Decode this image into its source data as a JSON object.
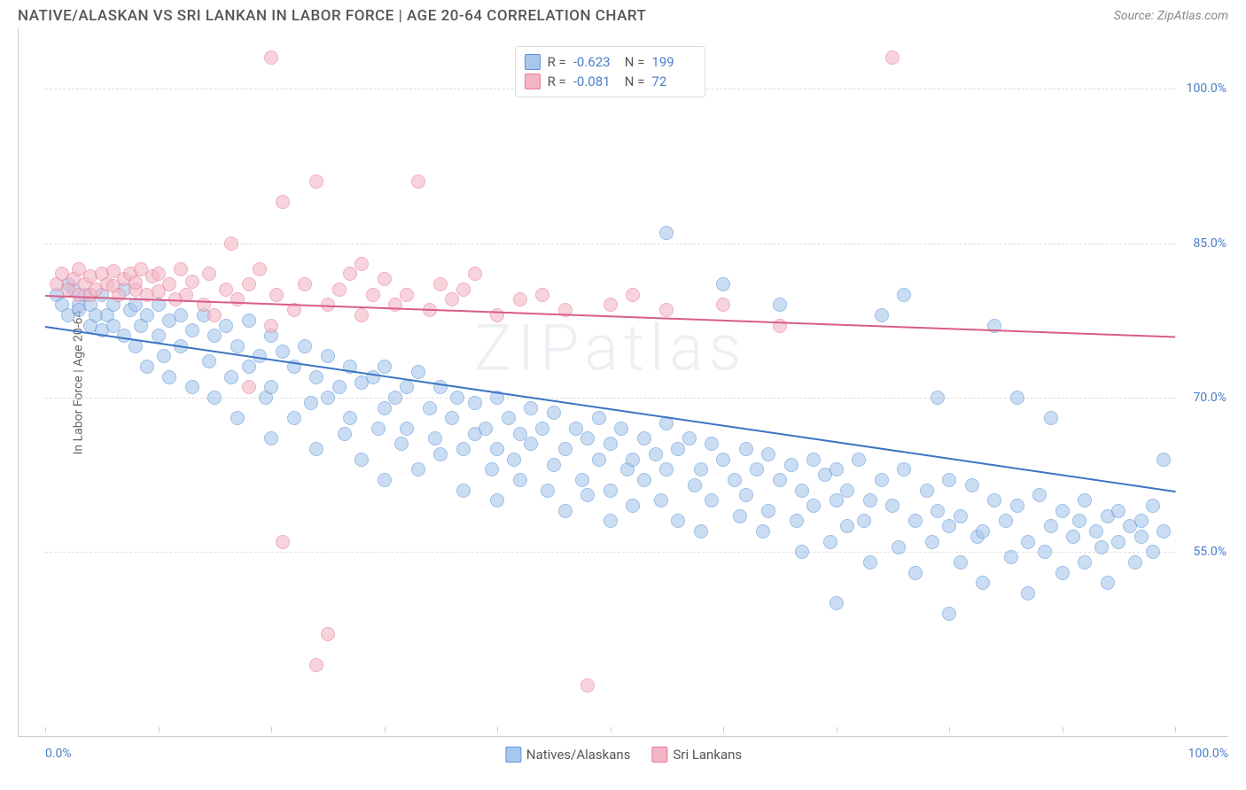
{
  "title": "NATIVE/ALASKAN VS SRI LANKAN IN LABOR FORCE | AGE 20-64 CORRELATION CHART",
  "source": "Source: ZipAtlas.com",
  "watermark": "ZIPatlas",
  "chart": {
    "type": "scatter",
    "ylabel": "In Labor Force | Age 20-64",
    "xlim": [
      0,
      100
    ],
    "ylim": [
      38,
      105
    ],
    "xtick_positions": [
      0,
      10,
      20,
      30,
      40,
      50,
      60,
      70,
      80,
      90,
      100
    ],
    "xtick_labels": {
      "left": "0.0%",
      "right": "100.0%"
    },
    "yticks": [
      {
        "v": 55,
        "label": "55.0%"
      },
      {
        "v": 70,
        "label": "70.0%"
      },
      {
        "v": 85,
        "label": "85.0%"
      },
      {
        "v": 100,
        "label": "100.0%"
      }
    ],
    "grid_color": "#dddddd",
    "background_color": "#ffffff",
    "tick_color": "#cccccc",
    "marker_radius": 8,
    "series": [
      {
        "name": "Natives/Alaskans",
        "fill": "#a9c7ec",
        "stroke": "#5c95d6",
        "line_color": "#3b74c4",
        "R": "-0.623",
        "N": "199",
        "trend": {
          "x1": 0,
          "y1": 77,
          "x2": 100,
          "y2": 61
        },
        "points": [
          [
            1,
            80
          ],
          [
            1.5,
            79
          ],
          [
            2,
            81
          ],
          [
            2,
            78
          ],
          [
            2.5,
            80.5
          ],
          [
            3,
            79
          ],
          [
            3,
            78.5
          ],
          [
            3.5,
            80
          ],
          [
            4,
            79
          ],
          [
            4,
            77
          ],
          [
            4.5,
            78
          ],
          [
            5,
            80
          ],
          [
            5,
            76.5
          ],
          [
            5.5,
            78
          ],
          [
            6,
            79
          ],
          [
            6,
            77
          ],
          [
            7,
            80.5
          ],
          [
            7,
            76
          ],
          [
            7.5,
            78.5
          ],
          [
            8,
            79
          ],
          [
            8,
            75
          ],
          [
            8.5,
            77
          ],
          [
            9,
            78
          ],
          [
            9,
            73
          ],
          [
            10,
            79
          ],
          [
            10,
            76
          ],
          [
            10.5,
            74
          ],
          [
            11,
            77.5
          ],
          [
            11,
            72
          ],
          [
            12,
            78
          ],
          [
            12,
            75
          ],
          [
            13,
            76.5
          ],
          [
            13,
            71
          ],
          [
            14,
            78
          ],
          [
            14.5,
            73.5
          ],
          [
            15,
            76
          ],
          [
            15,
            70
          ],
          [
            16,
            77
          ],
          [
            16.5,
            72
          ],
          [
            17,
            75
          ],
          [
            17,
            68
          ],
          [
            18,
            77.5
          ],
          [
            18,
            73
          ],
          [
            19,
            74
          ],
          [
            19.5,
            70
          ],
          [
            20,
            76
          ],
          [
            20,
            71
          ],
          [
            20,
            66
          ],
          [
            21,
            74.5
          ],
          [
            22,
            73
          ],
          [
            22,
            68
          ],
          [
            23,
            75
          ],
          [
            23.5,
            69.5
          ],
          [
            24,
            72
          ],
          [
            24,
            65
          ],
          [
            25,
            74
          ],
          [
            25,
            70
          ],
          [
            26,
            71
          ],
          [
            26.5,
            66.5
          ],
          [
            27,
            73
          ],
          [
            27,
            68
          ],
          [
            28,
            71.5
          ],
          [
            28,
            64
          ],
          [
            29,
            72
          ],
          [
            29.5,
            67
          ],
          [
            30,
            73
          ],
          [
            30,
            69
          ],
          [
            30,
            62
          ],
          [
            31,
            70
          ],
          [
            31.5,
            65.5
          ],
          [
            32,
            71
          ],
          [
            32,
            67
          ],
          [
            33,
            72.5
          ],
          [
            33,
            63
          ],
          [
            34,
            69
          ],
          [
            34.5,
            66
          ],
          [
            35,
            71
          ],
          [
            35,
            64.5
          ],
          [
            36,
            68
          ],
          [
            36.5,
            70
          ],
          [
            37,
            65
          ],
          [
            37,
            61
          ],
          [
            38,
            69.5
          ],
          [
            38,
            66.5
          ],
          [
            39,
            67
          ],
          [
            39.5,
            63
          ],
          [
            40,
            70
          ],
          [
            40,
            65
          ],
          [
            40,
            60
          ],
          [
            41,
            68
          ],
          [
            41.5,
            64
          ],
          [
            42,
            66.5
          ],
          [
            42,
            62
          ],
          [
            43,
            69
          ],
          [
            43,
            65.5
          ],
          [
            44,
            67
          ],
          [
            44.5,
            61
          ],
          [
            45,
            68.5
          ],
          [
            45,
            63.5
          ],
          [
            46,
            65
          ],
          [
            46,
            59
          ],
          [
            47,
            67
          ],
          [
            47.5,
            62
          ],
          [
            48,
            66
          ],
          [
            48,
            60.5
          ],
          [
            49,
            68
          ],
          [
            49,
            64
          ],
          [
            50,
            65.5
          ],
          [
            50,
            61
          ],
          [
            50,
            58
          ],
          [
            51,
            67
          ],
          [
            51.5,
            63
          ],
          [
            52,
            64
          ],
          [
            52,
            59.5
          ],
          [
            53,
            66
          ],
          [
            53,
            62
          ],
          [
            54,
            64.5
          ],
          [
            54.5,
            60
          ],
          [
            55,
            67.5
          ],
          [
            55,
            63
          ],
          [
            55,
            86
          ],
          [
            56,
            65
          ],
          [
            56,
            58
          ],
          [
            57,
            66
          ],
          [
            57.5,
            61.5
          ],
          [
            58,
            63
          ],
          [
            58,
            57
          ],
          [
            59,
            65.5
          ],
          [
            59,
            60
          ],
          [
            60,
            64
          ],
          [
            60,
            81
          ],
          [
            61,
            62
          ],
          [
            61.5,
            58.5
          ],
          [
            62,
            65
          ],
          [
            62,
            60.5
          ],
          [
            63,
            63
          ],
          [
            63.5,
            57
          ],
          [
            64,
            64.5
          ],
          [
            64,
            59
          ],
          [
            65,
            62
          ],
          [
            65,
            79
          ],
          [
            66,
            63.5
          ],
          [
            66.5,
            58
          ],
          [
            67,
            61
          ],
          [
            67,
            55
          ],
          [
            68,
            64
          ],
          [
            68,
            59.5
          ],
          [
            69,
            62.5
          ],
          [
            69.5,
            56
          ],
          [
            70,
            63
          ],
          [
            70,
            60
          ],
          [
            70,
            50
          ],
          [
            71,
            61
          ],
          [
            71,
            57.5
          ],
          [
            72,
            64
          ],
          [
            72.5,
            58
          ],
          [
            73,
            60
          ],
          [
            73,
            54
          ],
          [
            74,
            62
          ],
          [
            74,
            78
          ],
          [
            75,
            59.5
          ],
          [
            75.5,
            55.5
          ],
          [
            76,
            63
          ],
          [
            76,
            80
          ],
          [
            77,
            58
          ],
          [
            77,
            53
          ],
          [
            78,
            61
          ],
          [
            78.5,
            56
          ],
          [
            79,
            59
          ],
          [
            79,
            70
          ],
          [
            80,
            62
          ],
          [
            80,
            57.5
          ],
          [
            80,
            49
          ],
          [
            81,
            58.5
          ],
          [
            81,
            54
          ],
          [
            82,
            61.5
          ],
          [
            82.5,
            56.5
          ],
          [
            83,
            57
          ],
          [
            83,
            52
          ],
          [
            84,
            60
          ],
          [
            84,
            77
          ],
          [
            85,
            58
          ],
          [
            85.5,
            54.5
          ],
          [
            86,
            59.5
          ],
          [
            86,
            70
          ],
          [
            87,
            56
          ],
          [
            87,
            51
          ],
          [
            88,
            60.5
          ],
          [
            88.5,
            55
          ],
          [
            89,
            57.5
          ],
          [
            89,
            68
          ],
          [
            90,
            59
          ],
          [
            90,
            53
          ],
          [
            91,
            56.5
          ],
          [
            91.5,
            58
          ],
          [
            92,
            60
          ],
          [
            92,
            54
          ],
          [
            93,
            57
          ],
          [
            93.5,
            55.5
          ],
          [
            94,
            58.5
          ],
          [
            94,
            52
          ],
          [
            95,
            56
          ],
          [
            95,
            59
          ],
          [
            96,
            57.5
          ],
          [
            96.5,
            54
          ],
          [
            97,
            58
          ],
          [
            97,
            56.5
          ],
          [
            98,
            55
          ],
          [
            98,
            59.5
          ],
          [
            99,
            57
          ],
          [
            99,
            64
          ]
        ]
      },
      {
        "name": "Sri Lankans",
        "fill": "#f3b6c6",
        "stroke": "#e87a9a",
        "line_color": "#d95d86",
        "R": "-0.081",
        "N": "72",
        "trend": {
          "x1": 0,
          "y1": 80,
          "x2": 100,
          "y2": 76
        },
        "points": [
          [
            1,
            81
          ],
          [
            1.5,
            82
          ],
          [
            2,
            80.5
          ],
          [
            2.5,
            81.5
          ],
          [
            3,
            80
          ],
          [
            3,
            82.5
          ],
          [
            3.5,
            81
          ],
          [
            4,
            80
          ],
          [
            4,
            81.8
          ],
          [
            4.5,
            80.5
          ],
          [
            5,
            82
          ],
          [
            5.5,
            81
          ],
          [
            6,
            80.8
          ],
          [
            6,
            82.3
          ],
          [
            6.5,
            80
          ],
          [
            7,
            81.5
          ],
          [
            7.5,
            82
          ],
          [
            8,
            80.5
          ],
          [
            8,
            81.2
          ],
          [
            8.5,
            82.5
          ],
          [
            9,
            80
          ],
          [
            9.5,
            81.8
          ],
          [
            10,
            80.3
          ],
          [
            10,
            82
          ],
          [
            11,
            81
          ],
          [
            11.5,
            79.5
          ],
          [
            12,
            82.5
          ],
          [
            12.5,
            80
          ],
          [
            13,
            81.3
          ],
          [
            14,
            79
          ],
          [
            14.5,
            82
          ],
          [
            15,
            78
          ],
          [
            16,
            80.5
          ],
          [
            16.5,
            85
          ],
          [
            17,
            79.5
          ],
          [
            18,
            81
          ],
          [
            18,
            71
          ],
          [
            19,
            82.5
          ],
          [
            20,
            77
          ],
          [
            20,
            103
          ],
          [
            20.5,
            80
          ],
          [
            21,
            89
          ],
          [
            21,
            56
          ],
          [
            22,
            78.5
          ],
          [
            23,
            81
          ],
          [
            24,
            91
          ],
          [
            24,
            44
          ],
          [
            25,
            79
          ],
          [
            25,
            47
          ],
          [
            26,
            80.5
          ],
          [
            27,
            82
          ],
          [
            28,
            83
          ],
          [
            28,
            78
          ],
          [
            29,
            80
          ],
          [
            30,
            81.5
          ],
          [
            31,
            79
          ],
          [
            32,
            80
          ],
          [
            33,
            91
          ],
          [
            34,
            78.5
          ],
          [
            35,
            81
          ],
          [
            36,
            79.5
          ],
          [
            37,
            80.5
          ],
          [
            38,
            82
          ],
          [
            40,
            78
          ],
          [
            42,
            79.5
          ],
          [
            44,
            80
          ],
          [
            46,
            78.5
          ],
          [
            48,
            42
          ],
          [
            50,
            79
          ],
          [
            52,
            80
          ],
          [
            55,
            78.5
          ],
          [
            60,
            79
          ],
          [
            65,
            77
          ],
          [
            75,
            103
          ]
        ]
      }
    ]
  }
}
